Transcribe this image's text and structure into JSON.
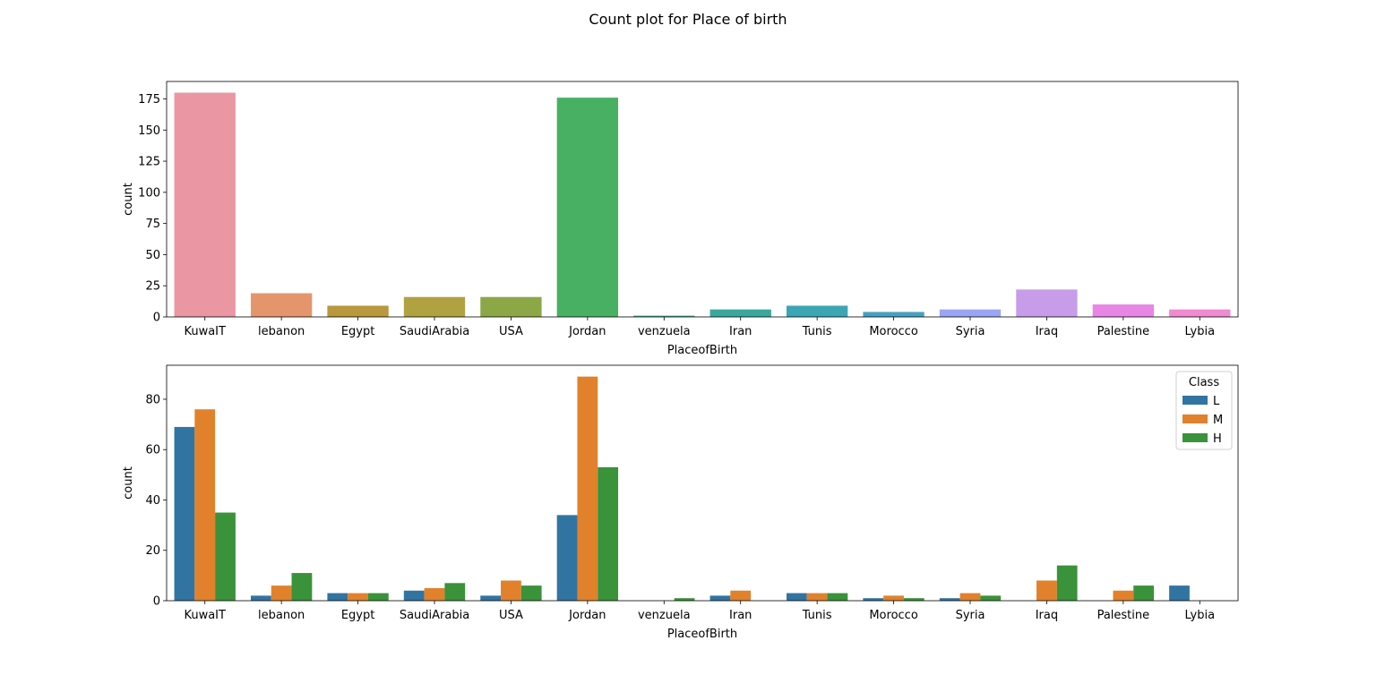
{
  "figure": {
    "title": "Count plot for Place of birth"
  },
  "chart_data": [
    {
      "type": "bar",
      "title": "",
      "xlabel": "PlaceofBirth",
      "ylabel": "count",
      "categories": [
        "KuwaIT",
        "lebanon",
        "Egypt",
        "SaudiArabia",
        "USA",
        "Jordan",
        "venzuela",
        "Iran",
        "Tunis",
        "Morocco",
        "Syria",
        "Iraq",
        "Palestine",
        "Lybia"
      ],
      "values": [
        180,
        19,
        9,
        16,
        16,
        176,
        1,
        6,
        9,
        4,
        6,
        22,
        10,
        6
      ],
      "colors": [
        "#ea96a3",
        "#e4956c",
        "#b9983e",
        "#b1a241",
        "#8ca846",
        "#48b063",
        "#3aa98d",
        "#3aa89c",
        "#3ca6b4",
        "#46a0c5",
        "#9aa6f5",
        "#c79de9",
        "#e786e5",
        "#f08ad1"
      ],
      "ylim": [
        0,
        189
      ],
      "yticks": [
        0,
        25,
        50,
        75,
        100,
        125,
        150,
        175
      ],
      "grid": false
    },
    {
      "type": "bar",
      "title": "",
      "xlabel": "PlaceofBirth",
      "ylabel": "count",
      "categories": [
        "KuwaIT",
        "lebanon",
        "Egypt",
        "SaudiArabia",
        "USA",
        "Jordan",
        "venzuela",
        "Iran",
        "Tunis",
        "Morocco",
        "Syria",
        "Iraq",
        "Palestine",
        "Lybia"
      ],
      "series": [
        {
          "name": "L",
          "color": "#3274a1",
          "values": [
            69,
            2,
            3,
            4,
            2,
            34,
            0,
            2,
            3,
            1,
            1,
            0,
            0,
            6
          ]
        },
        {
          "name": "M",
          "color": "#e1812c",
          "values": [
            76,
            6,
            3,
            5,
            8,
            89,
            0,
            4,
            3,
            2,
            3,
            8,
            4,
            0
          ]
        },
        {
          "name": "H",
          "color": "#3a923a",
          "values": [
            35,
            11,
            3,
            7,
            6,
            53,
            1,
            0,
            3,
            1,
            2,
            14,
            6,
            0
          ]
        }
      ],
      "legend": {
        "title": "Class",
        "placement": "top-right"
      },
      "ylim": [
        0,
        93.5
      ],
      "yticks": [
        0,
        20,
        40,
        60,
        80
      ],
      "grid": false
    }
  ]
}
